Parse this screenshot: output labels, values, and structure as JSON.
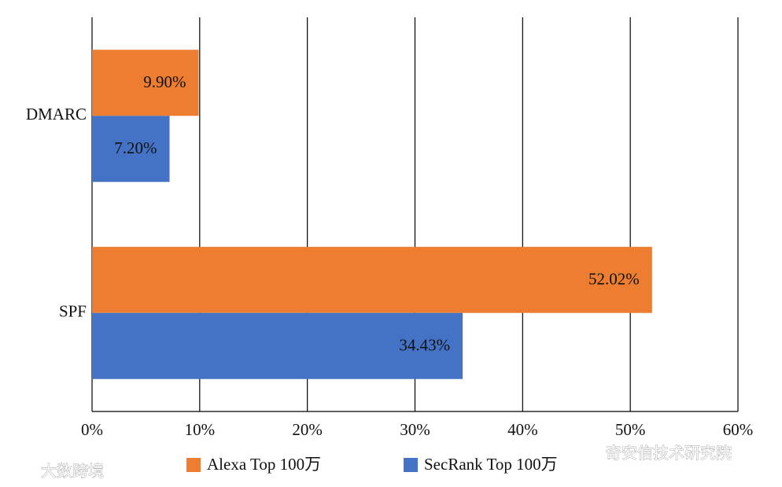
{
  "chart_data": {
    "type": "hbar",
    "categories": [
      "DMARC",
      "SPF"
    ],
    "series": [
      {
        "name": "Alexa Top 100万",
        "color": "#ED7D31",
        "values": [
          9.9,
          52.02
        ],
        "value_labels": [
          "9.90%",
          "52.02%"
        ]
      },
      {
        "name": "SecRank Top 100万",
        "color": "#4472C4",
        "values": [
          7.2,
          34.43
        ],
        "value_labels": [
          "7.20%",
          "34.43%"
        ]
      }
    ],
    "xlim": [
      0,
      60
    ],
    "xticks": [
      {
        "value": 0,
        "label": "0%"
      },
      {
        "value": 10,
        "label": "10%"
      },
      {
        "value": 20,
        "label": "20%"
      },
      {
        "value": 30,
        "label": "30%"
      },
      {
        "value": 40,
        "label": "40%"
      },
      {
        "value": 50,
        "label": "50%"
      },
      {
        "value": 60,
        "label": "60%"
      }
    ],
    "grid": true,
    "legend": "bottom"
  },
  "watermarks": [
    "大数跨境",
    "奇安信技术研究院"
  ]
}
